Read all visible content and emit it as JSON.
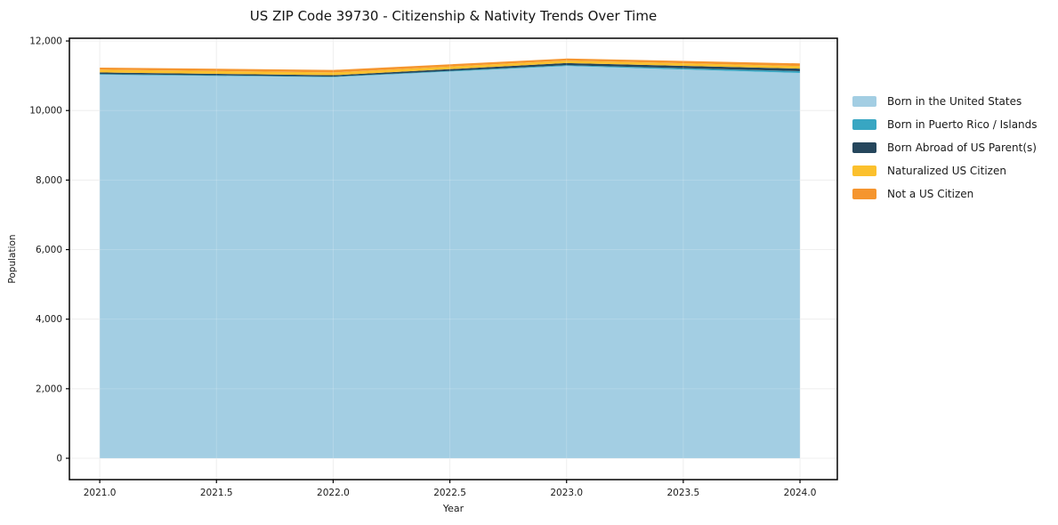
{
  "chart_data": {
    "type": "area",
    "stacked": true,
    "title": "US ZIP Code 39730 - Citizenship & Nativity Trends Over Time",
    "xlabel": "Year",
    "ylabel": "Population",
    "x": [
      2021,
      2022,
      2023,
      2024
    ],
    "series": [
      {
        "name": "Born in the United States",
        "color": "#a3cee3",
        "values": [
          11030,
          10960,
          11280,
          11080
        ]
      },
      {
        "name": "Born in Puerto Rico / Islands",
        "color": "#38a6c2",
        "values": [
          20,
          15,
          25,
          50
        ]
      },
      {
        "name": "Born Abroad of US Parent(s)",
        "color": "#25465c",
        "values": [
          45,
          40,
          60,
          75
        ]
      },
      {
        "name": "Naturalized US Citizen",
        "color": "#fbc02d",
        "values": [
          80,
          80,
          70,
          75
        ]
      },
      {
        "name": "Not a US Citizen",
        "color": "#f5952e",
        "values": [
          60,
          70,
          60,
          75
        ]
      }
    ],
    "xlim": [
      2020.87,
      2024.16
    ],
    "ylim": [
      -614,
      12078
    ],
    "x_ticks": [
      2021.0,
      2021.5,
      2022.0,
      2022.5,
      2023.0,
      2023.5,
      2024.0
    ],
    "x_tick_labels": [
      "2021.0",
      "2021.5",
      "2022.0",
      "2022.5",
      "2023.0",
      "2023.5",
      "2024.0"
    ],
    "y_ticks": [
      0,
      2000,
      4000,
      6000,
      8000,
      10000,
      12000
    ],
    "y_tick_labels": [
      "0",
      "2,000",
      "4,000",
      "6,000",
      "8,000",
      "10,000",
      "12,000"
    ],
    "grid": true,
    "legend_position": "right-outside"
  },
  "colors": {
    "grid": "#ececec",
    "spine": "#000000",
    "tick_text": "#1a1a1a",
    "background": "#ffffff"
  }
}
